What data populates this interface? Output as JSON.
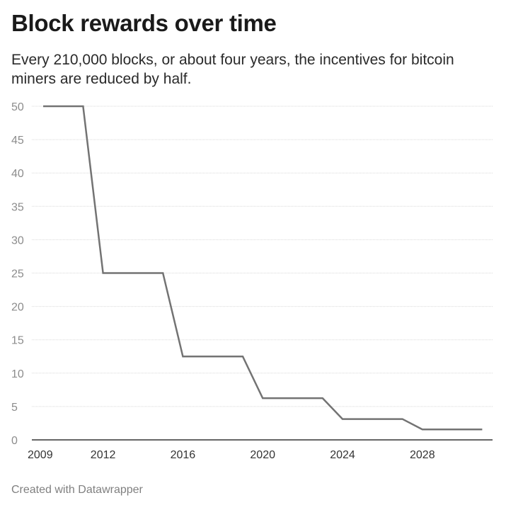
{
  "header": {
    "title": "Block rewards over time",
    "subtitle": "Every 210,000 blocks, or about four years, the incentives for bitcoin miners are reduced by half."
  },
  "footer": {
    "credit": "Created with Datawrapper"
  },
  "colors": {
    "line": "#737373",
    "grid": "#d9d9d9",
    "axis": "#333333",
    "tick_text": "#8c8c8c"
  },
  "chart_data": {
    "type": "line",
    "title": "Block rewards over time",
    "xlabel": "",
    "ylabel": "",
    "xlim": [
      2009,
      2031.5
    ],
    "ylim": [
      0,
      50
    ],
    "x_ticks": [
      2009,
      2012,
      2016,
      2020,
      2024,
      2028
    ],
    "y_ticks": [
      0,
      5,
      10,
      15,
      20,
      25,
      30,
      35,
      40,
      45,
      50
    ],
    "grid": true,
    "series": [
      {
        "x": [
          2009,
          2011,
          2012,
          2015,
          2016,
          2019,
          2020,
          2023,
          2024,
          2027,
          2028,
          2031
        ],
        "y": [
          50,
          50,
          25,
          25,
          12.5,
          12.5,
          6.25,
          6.25,
          3.125,
          3.125,
          1.5625,
          1.5625
        ]
      }
    ]
  }
}
